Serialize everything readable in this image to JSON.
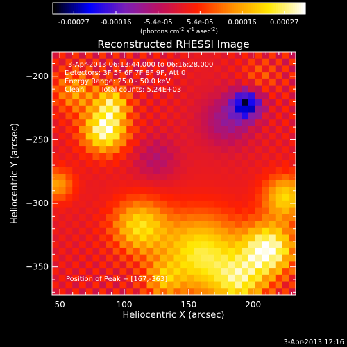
{
  "chart_data": {
    "type": "heatmap",
    "title": "Reconstructed RHESSI Image",
    "xlabel": "Heliocentric X (arcsec)",
    "ylabel": "Heliocentric Y (arcsec)",
    "xlim": [
      44,
      233
    ],
    "ylim": [
      -372,
      -181
    ],
    "x_ticks": [
      50,
      100,
      150,
      200
    ],
    "y_ticks": [
      -200,
      -250,
      -300,
      -350
    ],
    "colorbar": {
      "ticks": [
        "-0.00027",
        "-0.00016",
        "-5.4e-05",
        "5.4e-05",
        "0.00016",
        "0.00027"
      ],
      "range": [
        -0.00027,
        0.00027
      ],
      "unit_parts": [
        "(photons cm",
        "-2",
        " s",
        "-1",
        " asec",
        "-2",
        ")"
      ],
      "colormap": [
        "#000000",
        "#0000ff",
        "#7a1fb8",
        "#c0105a",
        "#ff2000",
        "#ff9000",
        "#ffe600",
        "#ffffff"
      ]
    },
    "annotations": {
      "time_range": "3-Apr-2013 06:13:44.000 to 06:16:28.000",
      "detectors": "Detectors: 3F 5F 6F 7F 8F 9F, Att 0",
      "energy": "Energy Range: 25.0 - 50.0 keV",
      "method": "Clean",
      "total_counts": "Total counts: 5.24E+03",
      "peak": "Position of Peak = [167,-363]"
    },
    "peak_position": [
      167,
      -363
    ],
    "timestamp": "3-Apr-2013 12:16",
    "grid_size": [
      36,
      36
    ],
    "sources": [
      {
        "x": 85,
        "y": -243,
        "sigma": 12,
        "amp": 0.00024
      },
      {
        "x": 91,
        "y": -221,
        "sigma": 9,
        "amp": 0.00016
      },
      {
        "x": 62,
        "y": -212,
        "sigma": 12,
        "amp": 0.00011
      },
      {
        "x": 48,
        "y": -285,
        "sigma": 9,
        "amp": 0.00012
      },
      {
        "x": 112,
        "y": -318,
        "sigma": 15,
        "amp": 0.00017
      },
      {
        "x": 160,
        "y": -340,
        "sigma": 22,
        "amp": 0.0002
      },
      {
        "x": 212,
        "y": -336,
        "sigma": 14,
        "amp": 0.00025
      },
      {
        "x": 225,
        "y": -295,
        "sigma": 12,
        "amp": 0.00017
      },
      {
        "x": 190,
        "y": -362,
        "sigma": 14,
        "amp": 0.00016
      },
      {
        "x": 130,
        "y": -360,
        "sigma": 10,
        "amp": 0.0001
      },
      {
        "x": 205,
        "y": -200,
        "sigma": 9,
        "amp": 5e-05
      },
      {
        "x": 195,
        "y": -222,
        "sigma": 8,
        "amp": -0.00022
      },
      {
        "x": 180,
        "y": -235,
        "sigma": 14,
        "amp": -9e-05
      },
      {
        "x": 125,
        "y": -265,
        "sigma": 12,
        "amp": -6e-05
      }
    ]
  }
}
